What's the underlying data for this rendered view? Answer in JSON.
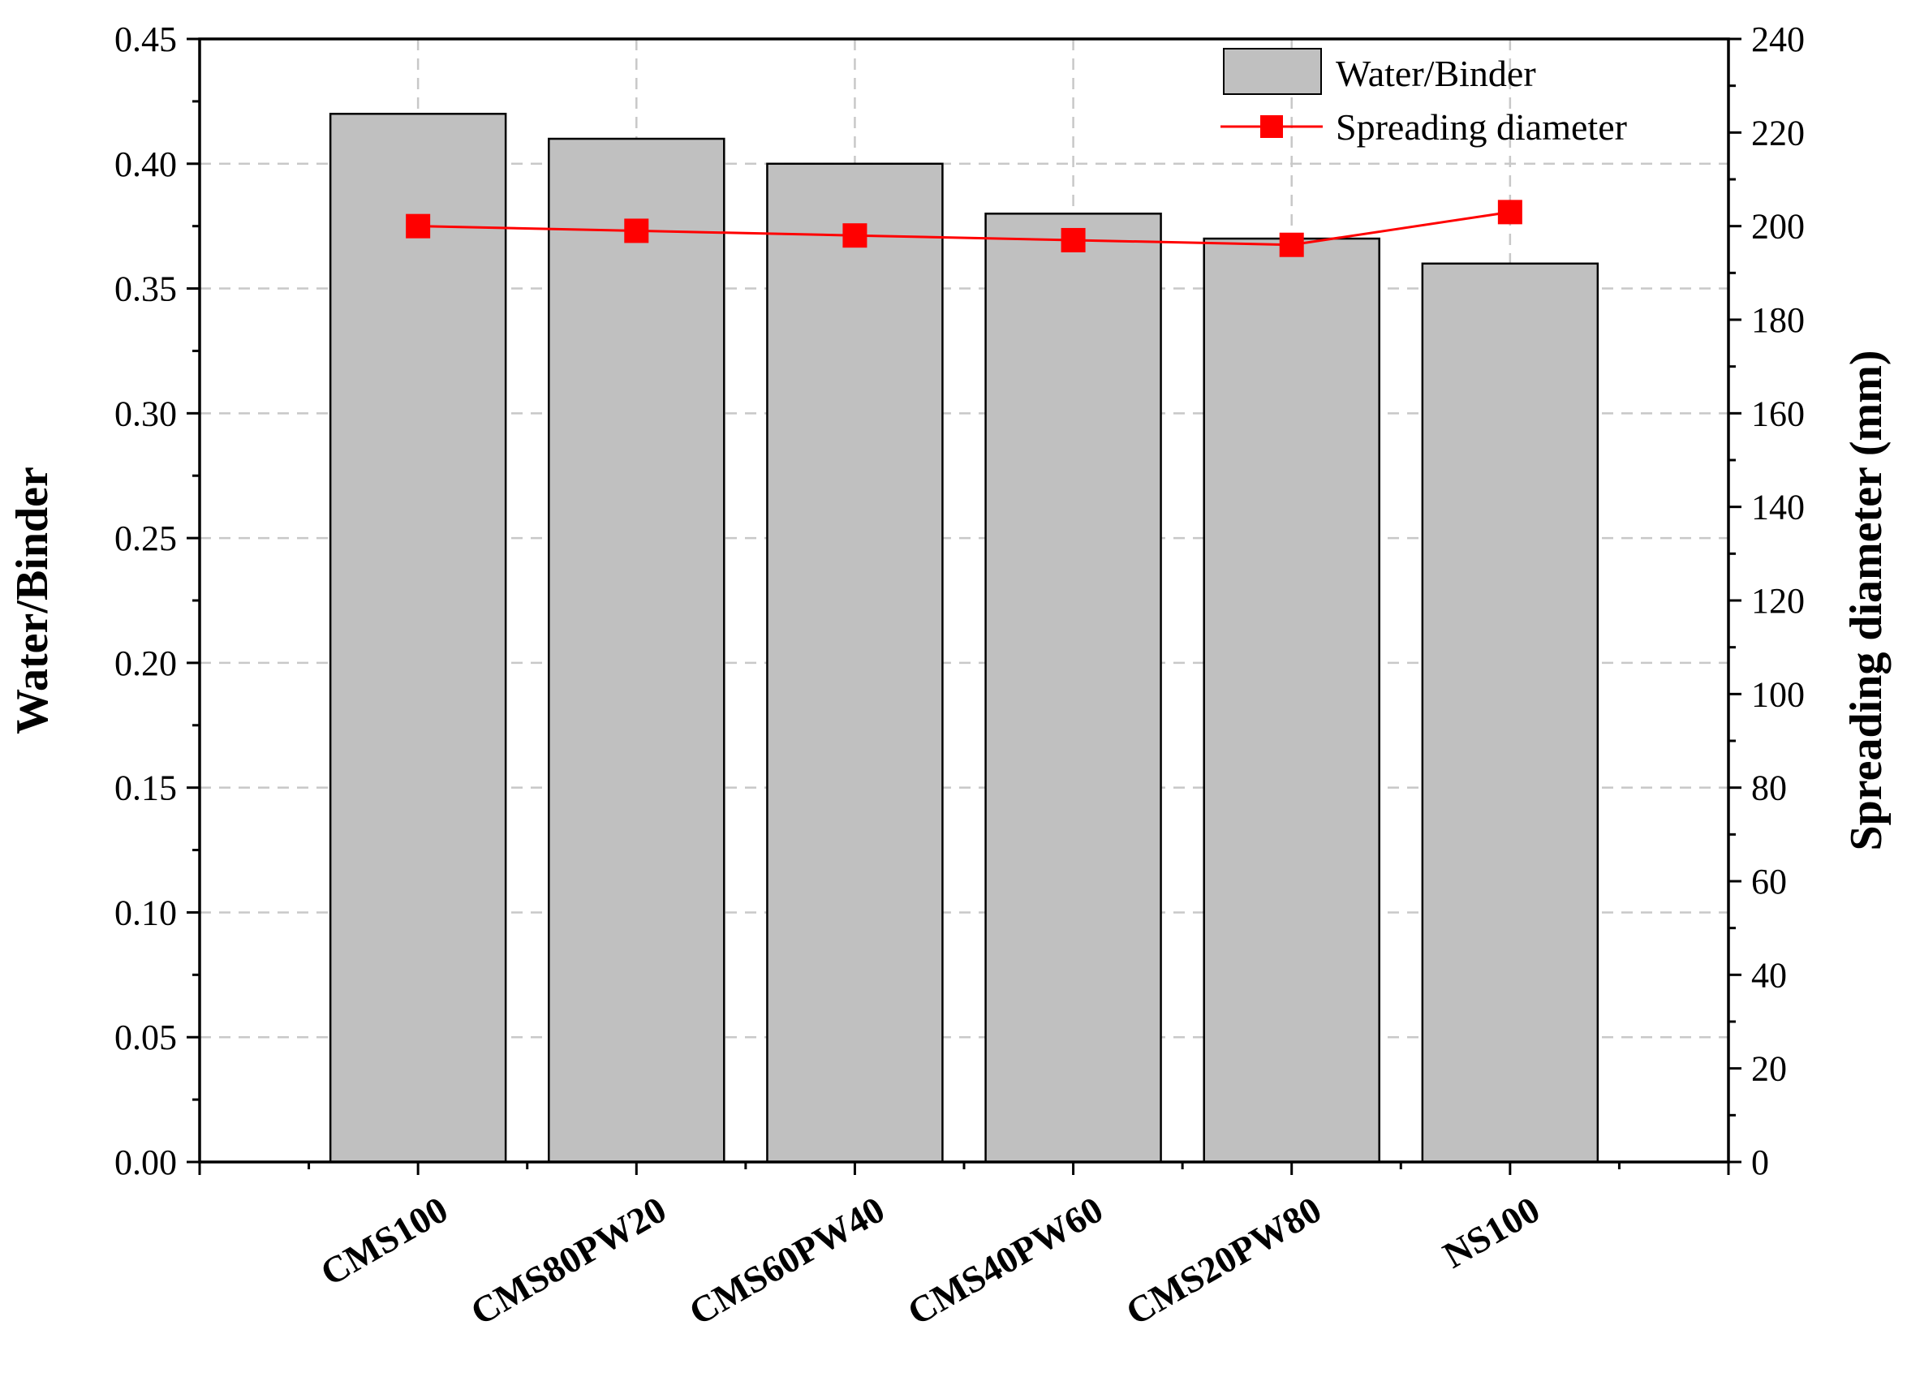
{
  "chart_data": {
    "type": "bar",
    "categories": [
      "CMS100",
      "CMS80PW20",
      "CMS60PW40",
      "CMS40PW60",
      "CMS20PW80",
      "NS100"
    ],
    "series": [
      {
        "name": "Water/Binder",
        "type": "bar",
        "axis": "left",
        "values": [
          0.42,
          0.41,
          0.4,
          0.38,
          0.37,
          0.36
        ]
      },
      {
        "name": "Spreading diameter",
        "type": "line",
        "axis": "right",
        "values": [
          200,
          199,
          198,
          197,
          196,
          203
        ]
      }
    ],
    "ylabel": "Water/Binder",
    "y2label": "Spreading diameter (mm)",
    "ylim": [
      0,
      0.45
    ],
    "y2lim": [
      0,
      240
    ],
    "yticks": [
      "0.00",
      "0.05",
      "0.10",
      "0.15",
      "0.20",
      "0.25",
      "0.30",
      "0.35",
      "0.40",
      "0.45"
    ],
    "y2ticks": [
      "0",
      "20",
      "40",
      "60",
      "80",
      "100",
      "120",
      "140",
      "160",
      "180",
      "200",
      "220",
      "240"
    ],
    "grid": true,
    "legend": "top-right",
    "colors": {
      "bar_fill": "#c0c0c0",
      "bar_stroke": "#000000",
      "line": "#ff0000",
      "marker": "#ff0000",
      "grid": "#c8c8c8"
    }
  }
}
